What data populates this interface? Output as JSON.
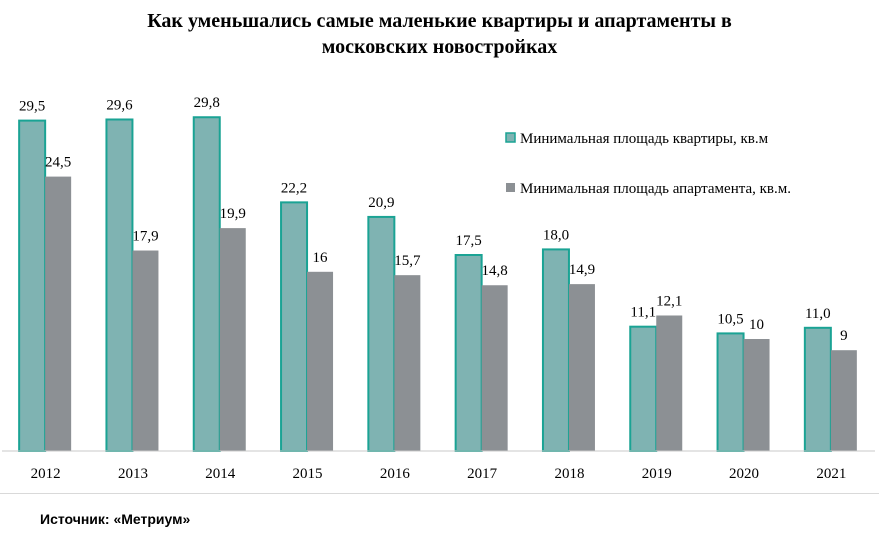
{
  "title": "Как уменьшались самые маленькие квартиры и апартаменты в\nмосковских новостройках",
  "source": "Источник: «Метриум»",
  "colors": {
    "apartment_fill": "#7fb3b2",
    "apartment_stroke": "#1aa394",
    "apart_fill": "#8c9094",
    "axis": "#c8c8c8"
  },
  "chart_data": {
    "type": "bar",
    "title": "Как уменьшались самые маленькие квартиры и апартаменты в московских новостройках",
    "categories": [
      "2012",
      "2013",
      "2014",
      "2015",
      "2016",
      "2017",
      "2018",
      "2019",
      "2020",
      "2021"
    ],
    "series": [
      {
        "name": "Минимальная площадь квартиры, кв.м",
        "values": [
          29.5,
          29.6,
          29.8,
          22.2,
          20.9,
          17.5,
          18.0,
          11.1,
          10.5,
          11.0
        ],
        "labels": [
          "29,5",
          "29,6",
          "29,8",
          "22,2",
          "20,9",
          "17,5",
          "18,0",
          "11,1",
          "10,5",
          "11,0"
        ]
      },
      {
        "name": "Минимальная площадь апартамента, кв.м.",
        "values": [
          24.5,
          17.9,
          19.9,
          16,
          15.7,
          14.8,
          14.9,
          12.1,
          10,
          9
        ],
        "labels": [
          "24,5",
          "17,9",
          "19,9",
          "16",
          "15,7",
          "14,8",
          "14,9",
          "12,1",
          "10",
          "9"
        ]
      }
    ],
    "ylim": [
      0,
      30
    ],
    "grid": false,
    "legend": "top-right"
  }
}
